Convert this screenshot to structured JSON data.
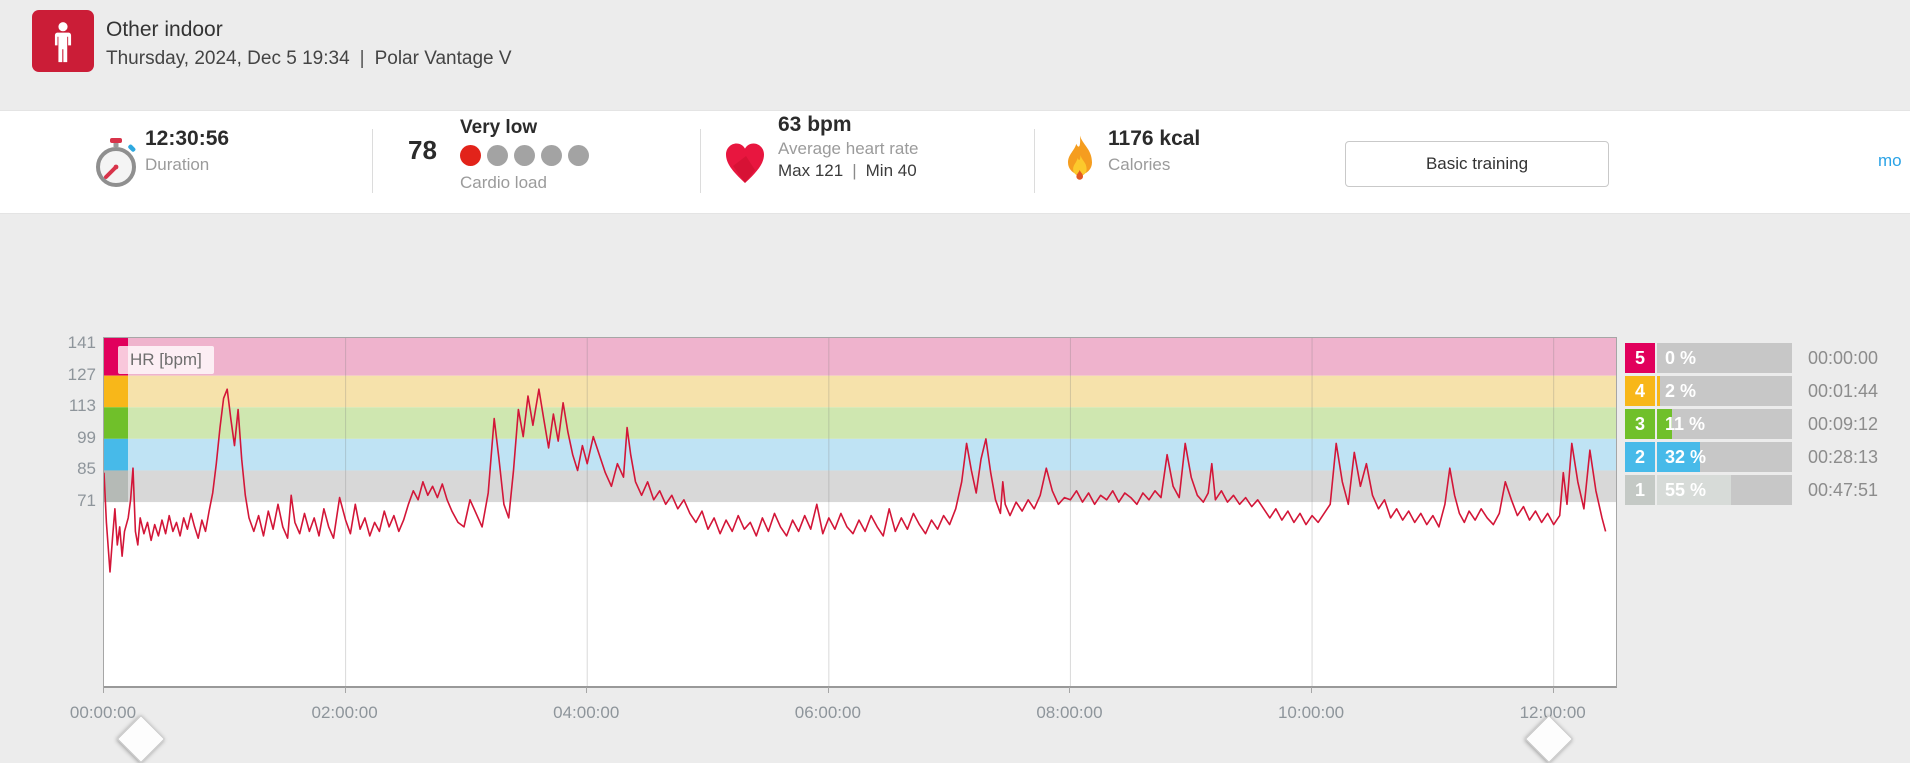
{
  "header": {
    "sport": "Other indoor",
    "datetime": "Thursday, 2024, Dec 5 19:34",
    "separator": "|",
    "device": "Polar Vantage V"
  },
  "stats": {
    "duration": {
      "value": "12:30:56",
      "label": "Duration"
    },
    "cardio_load": {
      "score": "78",
      "level": "Very low",
      "label": "Cardio load",
      "dots_total": 5,
      "dots_filled": 1,
      "dot_filled_color": "#e2231a",
      "dot_empty_color": "#a3a3a3"
    },
    "heart_rate": {
      "value": "63 bpm",
      "label": "Average heart rate",
      "max_label": "Max 121",
      "separator": "|",
      "min_label": "Min 40"
    },
    "calories": {
      "value": "1176 kcal",
      "label": "Calories"
    },
    "training_benefit_button": "Basic training",
    "more_link": "mo"
  },
  "chart_data": {
    "type": "line",
    "title": "HR [bpm]",
    "ylabel": "HR [bpm]",
    "x_ticks": [
      "00:00:00",
      "02:00:00",
      "04:00:00",
      "06:00:00",
      "08:00:00",
      "10:00:00",
      "12:00:00"
    ],
    "x_tick_hours": [
      0,
      2,
      4,
      6,
      8,
      10,
      12
    ],
    "x_range_hours": [
      0,
      12.516
    ],
    "y_ticks": [
      141,
      127,
      113,
      99,
      85,
      71
    ],
    "y_range": [
      -10.5,
      143.7
    ],
    "grid": true,
    "line_color": "#d31638",
    "border_color": "#a6a6a6",
    "grid_color": "rgba(120,120,120,0.28)",
    "zones_bands": [
      {
        "zone": 5,
        "from": 127,
        "to": 143.7,
        "band_color": "#efb3cd",
        "strip_color": "#e1005c"
      },
      {
        "zone": 4,
        "from": 113,
        "to": 127,
        "band_color": "#f6e2ab",
        "strip_color": "#f8b719"
      },
      {
        "zone": 3,
        "from": 99,
        "to": 113,
        "band_color": "#cfe7b0",
        "strip_color": "#70c02a"
      },
      {
        "zone": 2,
        "from": 85,
        "to": 99,
        "band_color": "#bfe3f4",
        "strip_color": "#47bae9"
      },
      {
        "zone": 1,
        "from": 71,
        "to": 85,
        "band_color": "#d8d8d8",
        "strip_color": "#b5bab6"
      }
    ],
    "series": [
      {
        "name": "HR",
        "unit": "bpm",
        "points": [
          [
            0.0,
            84
          ],
          [
            0.02,
            62
          ],
          [
            0.05,
            40
          ],
          [
            0.07,
            55
          ],
          [
            0.09,
            68
          ],
          [
            0.11,
            52
          ],
          [
            0.13,
            60
          ],
          [
            0.15,
            47
          ],
          [
            0.17,
            58
          ],
          [
            0.2,
            64
          ],
          [
            0.22,
            72
          ],
          [
            0.24,
            86
          ],
          [
            0.26,
            58
          ],
          [
            0.28,
            52
          ],
          [
            0.3,
            64
          ],
          [
            0.33,
            57
          ],
          [
            0.36,
            62
          ],
          [
            0.39,
            54
          ],
          [
            0.42,
            61
          ],
          [
            0.45,
            56
          ],
          [
            0.48,
            63
          ],
          [
            0.51,
            57
          ],
          [
            0.54,
            65
          ],
          [
            0.57,
            58
          ],
          [
            0.6,
            62
          ],
          [
            0.63,
            56
          ],
          [
            0.66,
            64
          ],
          [
            0.69,
            59
          ],
          [
            0.72,
            66
          ],
          [
            0.75,
            60
          ],
          [
            0.78,
            55
          ],
          [
            0.81,
            63
          ],
          [
            0.84,
            58
          ],
          [
            0.87,
            67
          ],
          [
            0.9,
            75
          ],
          [
            0.93,
            88
          ],
          [
            0.96,
            104
          ],
          [
            0.99,
            117
          ],
          [
            1.02,
            121
          ],
          [
            1.05,
            108
          ],
          [
            1.08,
            96
          ],
          [
            1.11,
            112
          ],
          [
            1.14,
            90
          ],
          [
            1.17,
            74
          ],
          [
            1.2,
            64
          ],
          [
            1.24,
            58
          ],
          [
            1.28,
            65
          ],
          [
            1.32,
            56
          ],
          [
            1.36,
            67
          ],
          [
            1.4,
            59
          ],
          [
            1.44,
            70
          ],
          [
            1.48,
            60
          ],
          [
            1.52,
            55
          ],
          [
            1.55,
            74
          ],
          [
            1.58,
            62
          ],
          [
            1.62,
            57
          ],
          [
            1.66,
            66
          ],
          [
            1.7,
            58
          ],
          [
            1.74,
            64
          ],
          [
            1.78,
            56
          ],
          [
            1.82,
            68
          ],
          [
            1.86,
            60
          ],
          [
            1.9,
            55
          ],
          [
            1.95,
            73
          ],
          [
            2.0,
            63
          ],
          [
            2.04,
            57
          ],
          [
            2.08,
            70
          ],
          [
            2.12,
            59
          ],
          [
            2.16,
            64
          ],
          [
            2.2,
            56
          ],
          [
            2.24,
            62
          ],
          [
            2.28,
            58
          ],
          [
            2.32,
            67
          ],
          [
            2.36,
            60
          ],
          [
            2.4,
            65
          ],
          [
            2.44,
            58
          ],
          [
            2.48,
            63
          ],
          [
            2.52,
            70
          ],
          [
            2.56,
            76
          ],
          [
            2.6,
            72
          ],
          [
            2.64,
            80
          ],
          [
            2.68,
            74
          ],
          [
            2.72,
            78
          ],
          [
            2.76,
            73
          ],
          [
            2.8,
            79
          ],
          [
            2.84,
            72
          ],
          [
            2.88,
            67
          ],
          [
            2.93,
            62
          ],
          [
            2.98,
            60
          ],
          [
            3.03,
            72
          ],
          [
            3.08,
            66
          ],
          [
            3.13,
            60
          ],
          [
            3.18,
            75
          ],
          [
            3.23,
            108
          ],
          [
            3.27,
            90
          ],
          [
            3.31,
            70
          ],
          [
            3.35,
            64
          ],
          [
            3.39,
            85
          ],
          [
            3.43,
            112
          ],
          [
            3.47,
            100
          ],
          [
            3.51,
            118
          ],
          [
            3.55,
            105
          ],
          [
            3.6,
            121
          ],
          [
            3.64,
            108
          ],
          [
            3.68,
            95
          ],
          [
            3.72,
            110
          ],
          [
            3.76,
            98
          ],
          [
            3.8,
            115
          ],
          [
            3.84,
            102
          ],
          [
            3.88,
            92
          ],
          [
            3.92,
            85
          ],
          [
            3.96,
            96
          ],
          [
            4.0,
            88
          ],
          [
            4.05,
            100
          ],
          [
            4.1,
            92
          ],
          [
            4.15,
            84
          ],
          [
            4.2,
            78
          ],
          [
            4.25,
            88
          ],
          [
            4.3,
            82
          ],
          [
            4.33,
            104
          ],
          [
            4.36,
            92
          ],
          [
            4.4,
            80
          ],
          [
            4.45,
            74
          ],
          [
            4.5,
            80
          ],
          [
            4.55,
            72
          ],
          [
            4.6,
            76
          ],
          [
            4.65,
            70
          ],
          [
            4.7,
            74
          ],
          [
            4.75,
            68
          ],
          [
            4.8,
            72
          ],
          [
            4.85,
            66
          ],
          [
            4.9,
            62
          ],
          [
            4.95,
            67
          ],
          [
            5.0,
            59
          ],
          [
            5.05,
            64
          ],
          [
            5.1,
            57
          ],
          [
            5.15,
            63
          ],
          [
            5.2,
            58
          ],
          [
            5.25,
            65
          ],
          [
            5.3,
            59
          ],
          [
            5.35,
            62
          ],
          [
            5.4,
            56
          ],
          [
            5.45,
            64
          ],
          [
            5.5,
            58
          ],
          [
            5.55,
            66
          ],
          [
            5.6,
            60
          ],
          [
            5.65,
            56
          ],
          [
            5.7,
            63
          ],
          [
            5.75,
            58
          ],
          [
            5.8,
            65
          ],
          [
            5.85,
            59
          ],
          [
            5.9,
            70
          ],
          [
            5.95,
            57
          ],
          [
            6.0,
            64
          ],
          [
            6.05,
            59
          ],
          [
            6.1,
            66
          ],
          [
            6.15,
            60
          ],
          [
            6.2,
            57
          ],
          [
            6.25,
            63
          ],
          [
            6.3,
            58
          ],
          [
            6.35,
            65
          ],
          [
            6.4,
            60
          ],
          [
            6.45,
            56
          ],
          [
            6.5,
            68
          ],
          [
            6.55,
            58
          ],
          [
            6.6,
            64
          ],
          [
            6.65,
            59
          ],
          [
            6.7,
            66
          ],
          [
            6.75,
            61
          ],
          [
            6.8,
            57
          ],
          [
            6.85,
            63
          ],
          [
            6.9,
            59
          ],
          [
            6.95,
            65
          ],
          [
            7.0,
            61
          ],
          [
            7.05,
            68
          ],
          [
            7.1,
            80
          ],
          [
            7.14,
            97
          ],
          [
            7.18,
            85
          ],
          [
            7.22,
            75
          ],
          [
            7.26,
            90
          ],
          [
            7.3,
            99
          ],
          [
            7.34,
            84
          ],
          [
            7.38,
            72
          ],
          [
            7.42,
            66
          ],
          [
            7.44,
            80
          ],
          [
            7.46,
            70
          ],
          [
            7.5,
            65
          ],
          [
            7.55,
            71
          ],
          [
            7.6,
            67
          ],
          [
            7.65,
            72
          ],
          [
            7.7,
            68
          ],
          [
            7.75,
            74
          ],
          [
            7.8,
            86
          ],
          [
            7.85,
            76
          ],
          [
            7.9,
            70
          ],
          [
            7.95,
            73
          ],
          [
            8.0,
            72
          ],
          [
            8.05,
            76
          ],
          [
            8.1,
            71
          ],
          [
            8.15,
            75
          ],
          [
            8.2,
            70
          ],
          [
            8.25,
            74
          ],
          [
            8.3,
            72
          ],
          [
            8.35,
            76
          ],
          [
            8.4,
            71
          ],
          [
            8.45,
            75
          ],
          [
            8.5,
            73
          ],
          [
            8.55,
            70
          ],
          [
            8.6,
            75
          ],
          [
            8.65,
            72
          ],
          [
            8.7,
            76
          ],
          [
            8.75,
            73
          ],
          [
            8.8,
            92
          ],
          [
            8.85,
            78
          ],
          [
            8.9,
            73
          ],
          [
            8.95,
            97
          ],
          [
            9.0,
            82
          ],
          [
            9.05,
            74
          ],
          [
            9.1,
            71
          ],
          [
            9.14,
            75
          ],
          [
            9.17,
            88
          ],
          [
            9.2,
            72
          ],
          [
            9.25,
            76
          ],
          [
            9.3,
            71
          ],
          [
            9.35,
            74
          ],
          [
            9.4,
            70
          ],
          [
            9.45,
            73
          ],
          [
            9.5,
            69
          ],
          [
            9.55,
            72
          ],
          [
            9.6,
            68
          ],
          [
            9.65,
            64
          ],
          [
            9.7,
            68
          ],
          [
            9.75,
            63
          ],
          [
            9.8,
            67
          ],
          [
            9.85,
            62
          ],
          [
            9.9,
            66
          ],
          [
            9.95,
            61
          ],
          [
            10.0,
            65
          ],
          [
            10.05,
            62
          ],
          [
            10.1,
            66
          ],
          [
            10.15,
            70
          ],
          [
            10.2,
            97
          ],
          [
            10.25,
            80
          ],
          [
            10.3,
            70
          ],
          [
            10.35,
            93
          ],
          [
            10.4,
            78
          ],
          [
            10.45,
            88
          ],
          [
            10.5,
            74
          ],
          [
            10.55,
            68
          ],
          [
            10.6,
            72
          ],
          [
            10.65,
            64
          ],
          [
            10.7,
            68
          ],
          [
            10.75,
            63
          ],
          [
            10.8,
            67
          ],
          [
            10.85,
            62
          ],
          [
            10.9,
            66
          ],
          [
            10.95,
            61
          ],
          [
            11.0,
            65
          ],
          [
            11.05,
            60
          ],
          [
            11.1,
            70
          ],
          [
            11.14,
            86
          ],
          [
            11.18,
            74
          ],
          [
            11.22,
            66
          ],
          [
            11.26,
            62
          ],
          [
            11.3,
            67
          ],
          [
            11.35,
            63
          ],
          [
            11.4,
            68
          ],
          [
            11.45,
            64
          ],
          [
            11.5,
            61
          ],
          [
            11.55,
            66
          ],
          [
            11.6,
            80
          ],
          [
            11.65,
            72
          ],
          [
            11.7,
            65
          ],
          [
            11.75,
            69
          ],
          [
            11.8,
            63
          ],
          [
            11.85,
            67
          ],
          [
            11.9,
            62
          ],
          [
            11.95,
            66
          ],
          [
            12.0,
            61
          ],
          [
            12.05,
            65
          ],
          [
            12.08,
            84
          ],
          [
            12.11,
            70
          ],
          [
            12.15,
            97
          ],
          [
            12.2,
            80
          ],
          [
            12.25,
            68
          ],
          [
            12.3,
            94
          ],
          [
            12.35,
            76
          ],
          [
            12.4,
            64
          ],
          [
            12.43,
            58
          ]
        ]
      }
    ]
  },
  "zone_table": {
    "track_color": "#c7c7c7",
    "rows": [
      {
        "zone": "5",
        "pct": 0,
        "pct_label": "0 %",
        "time": "00:00:00",
        "color": "#e1005c",
        "fill_color": "#e1005c"
      },
      {
        "zone": "4",
        "pct": 2,
        "pct_label": "2 %",
        "time": "00:01:44",
        "color": "#f8b719",
        "fill_color": "#f8b719"
      },
      {
        "zone": "3",
        "pct": 11,
        "pct_label": "11 %",
        "time": "00:09:12",
        "color": "#70c02a",
        "fill_color": "#70c02a"
      },
      {
        "zone": "2",
        "pct": 32,
        "pct_label": "32 %",
        "time": "00:28:13",
        "color": "#47bae9",
        "fill_color": "#47bae9"
      },
      {
        "zone": "1",
        "pct": 55,
        "pct_label": "55 %",
        "time": "00:47:51",
        "color": "#c4c9c5",
        "fill_color": "#d7dbd8"
      }
    ]
  }
}
